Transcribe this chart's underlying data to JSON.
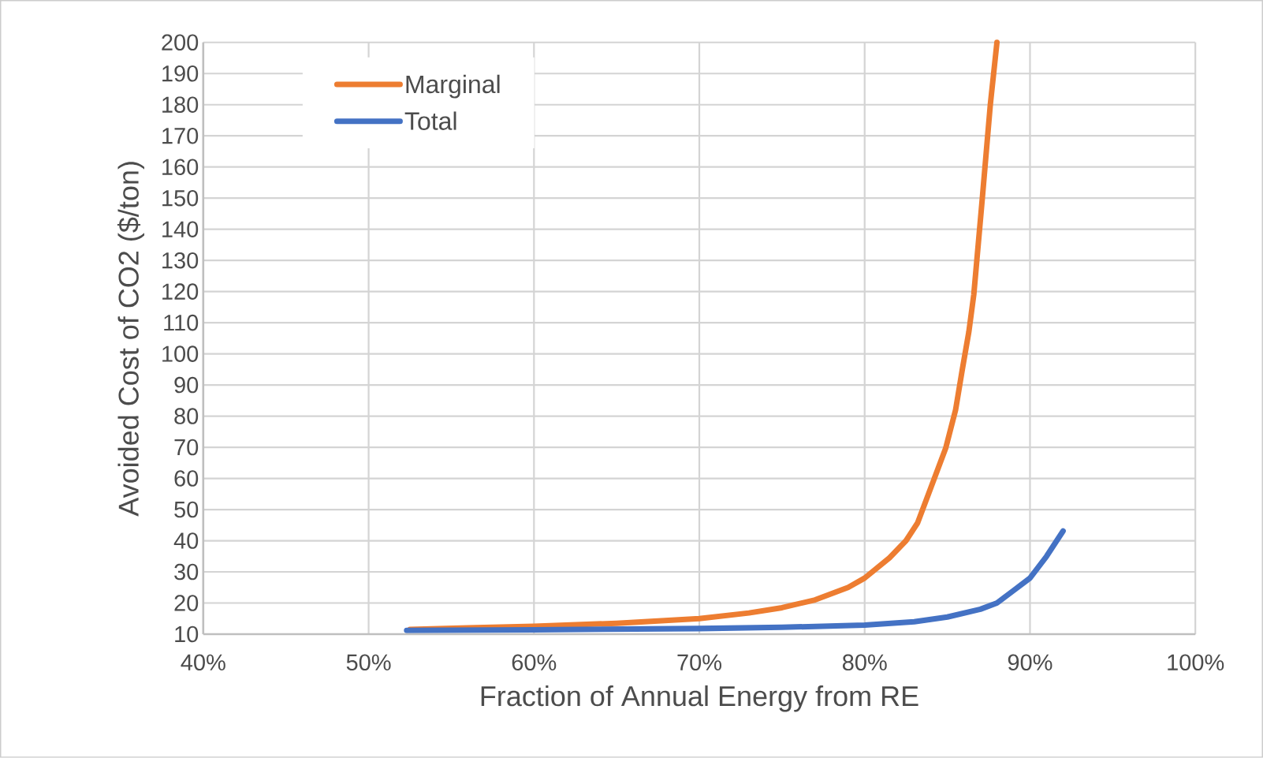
{
  "chart_data": {
    "type": "line",
    "xlabel": "Fraction of Annual Energy from RE",
    "ylabel": "Avoided Cost of CO2 ($/ton)",
    "xlim": [
      40,
      100
    ],
    "ylim": [
      10,
      200
    ],
    "xticks": [
      {
        "value": 40,
        "label": "40%"
      },
      {
        "value": 50,
        "label": "50%"
      },
      {
        "value": 60,
        "label": "60%"
      },
      {
        "value": 70,
        "label": "70%"
      },
      {
        "value": 80,
        "label": "80%"
      },
      {
        "value": 90,
        "label": "90%"
      },
      {
        "value": 100,
        "label": "100%"
      }
    ],
    "yticks": [
      10,
      20,
      30,
      40,
      50,
      60,
      70,
      80,
      90,
      100,
      110,
      120,
      130,
      140,
      150,
      160,
      170,
      180,
      190,
      200
    ],
    "grid": true,
    "legend": "top left",
    "series": [
      {
        "name": "Marginal",
        "color": "#ed7d31",
        "x": [
          52.5,
          56,
          60,
          65,
          70,
          73,
          75,
          77,
          79,
          80,
          81.5,
          82.5,
          83.2,
          84,
          84.9,
          85.5,
          85.9,
          86.3,
          86.6,
          87.1,
          87.6,
          88.0
        ],
        "values": [
          11.5,
          12,
          12.5,
          13.5,
          15,
          16.8,
          18.5,
          21,
          25,
          28,
          34.5,
          40,
          45.7,
          57,
          69.7,
          82,
          94.8,
          107,
          119,
          149,
          180,
          200
        ]
      },
      {
        "name": "Total",
        "color": "#4472c4",
        "x": [
          52.3,
          60,
          70,
          75,
          80,
          83,
          85,
          87,
          88,
          89,
          90,
          91,
          92.0
        ],
        "values": [
          11.2,
          11.4,
          11.8,
          12.2,
          12.9,
          14,
          15.5,
          18,
          20,
          24,
          28,
          35,
          43.1
        ]
      }
    ]
  }
}
